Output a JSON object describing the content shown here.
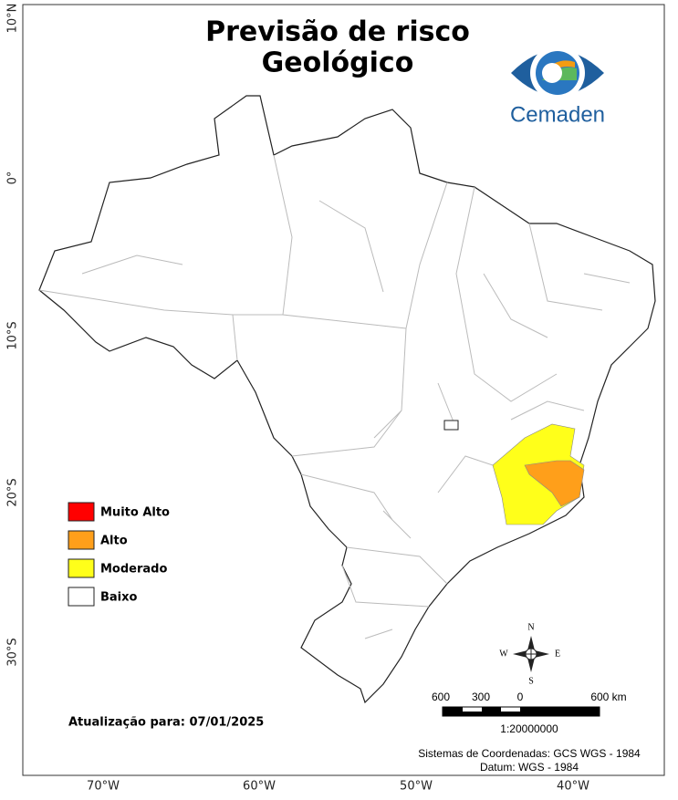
{
  "title": [
    "Previsão de risco",
    "Geológico"
  ],
  "logo": "Cemaden",
  "legend": [
    {
      "label": "Muito Alto",
      "color": "#ff0000"
    },
    {
      "label": "Alto",
      "color": "#ff9f1a"
    },
    {
      "label": "Moderado",
      "color": "#ffff1a"
    },
    {
      "label": "Baixo",
      "color": "#ffffff"
    }
  ],
  "update": "Atualização para: 07/01/2025",
  "lat_labels": [
    "10°N",
    "0°",
    "10°S",
    "20°S",
    "30°S"
  ],
  "lon_labels": [
    "70°W",
    "60°W",
    "50°W",
    "40°W"
  ],
  "compass": [
    "N",
    "S",
    "E",
    "W"
  ],
  "scale": {
    "labels": [
      "600",
      "300",
      "0",
      "600 km"
    ],
    "ratio": "1:20000000"
  },
  "crs": [
    "Sistemas de Coordenadas: GCS WGS - 1984",
    "Datum: WGS - 1984"
  ]
}
